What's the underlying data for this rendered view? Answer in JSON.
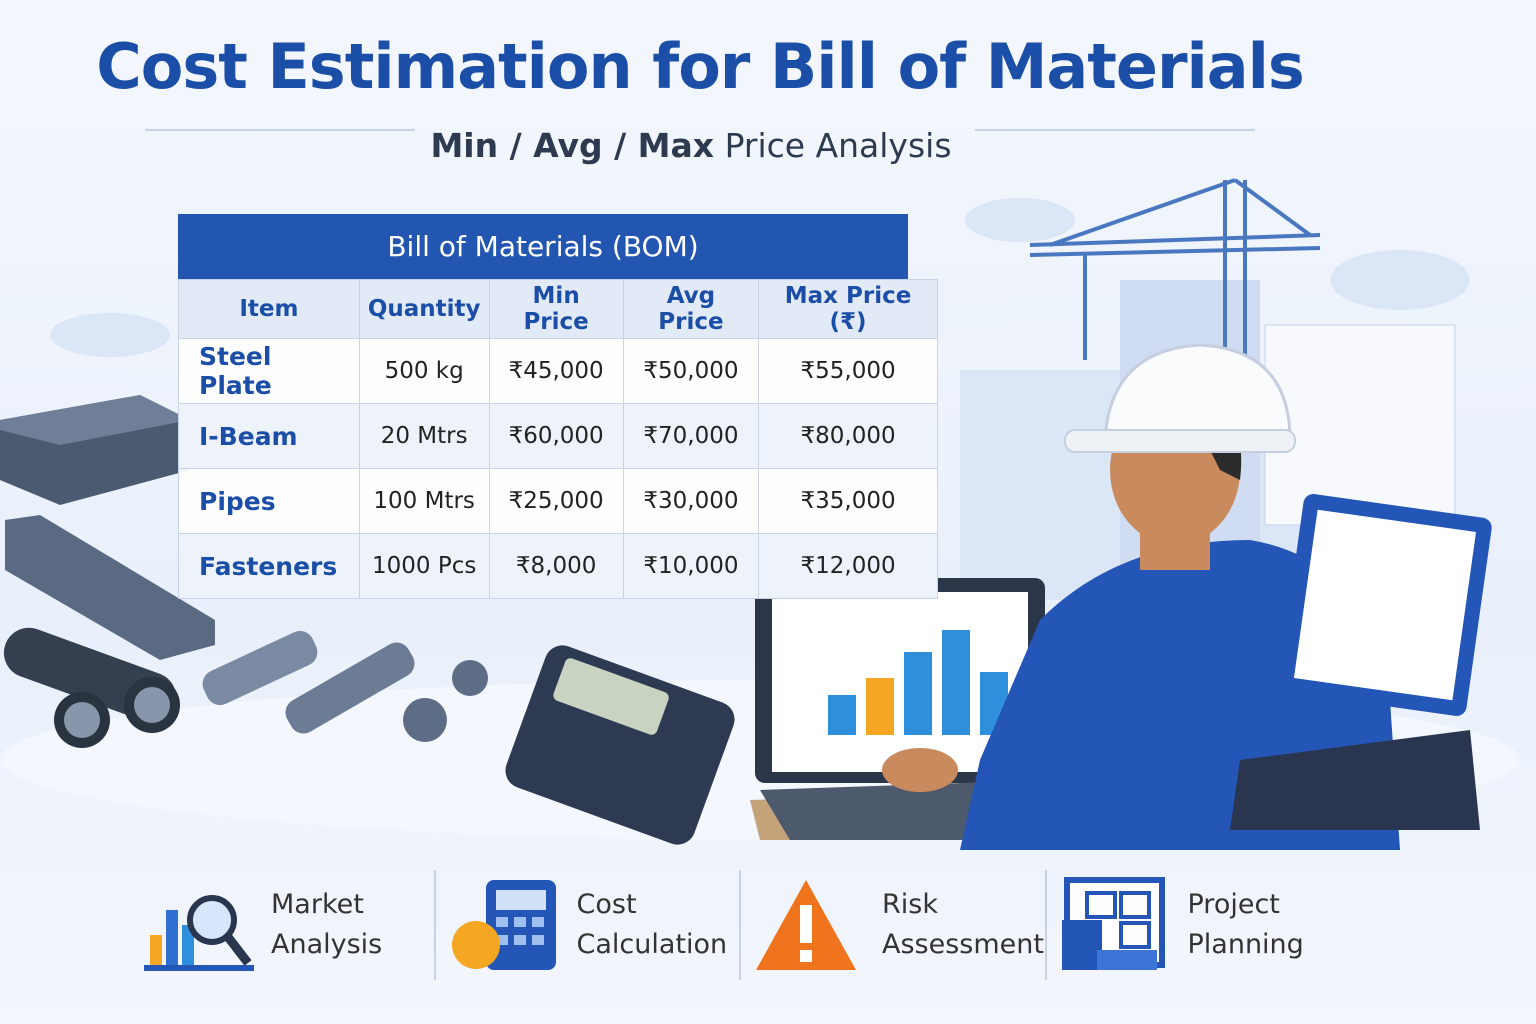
{
  "header": {
    "title": "Cost Estimation for Bill of Materials",
    "subtitle_bold": "Min / Avg / Max",
    "subtitle_rest": "Price Analysis"
  },
  "table": {
    "title": "Bill of Materials (BOM)",
    "columns": [
      "Item",
      "Quantity",
      "Min Price",
      "Avg Price",
      "Max Price (₹)"
    ],
    "rows": [
      [
        "Steel Plate",
        "500 kg",
        "₹45,000",
        "₹50,000",
        "₹55,000"
      ],
      [
        "I-Beam",
        "20 Mtrs",
        "₹60,000",
        "₹70,000",
        "₹80,000"
      ],
      [
        "Pipes",
        "100 Mtrs",
        "₹25,000",
        "₹30,000",
        "₹35,000"
      ],
      [
        "Fasteners",
        "1000 Pcs",
        "₹8,000",
        "₹10,000",
        "₹12,000"
      ]
    ]
  },
  "features": [
    {
      "label": "Market Analysis"
    },
    {
      "label": "Cost Calculation"
    },
    {
      "label": "Risk Assessment"
    },
    {
      "label": "Project Planning"
    }
  ]
}
